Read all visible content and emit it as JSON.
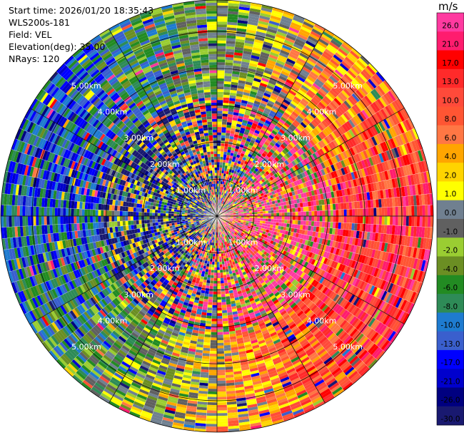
{
  "header": {
    "start_time": "Start time: 2026/01/20 18:35:43",
    "instrument": "WLS200s-181",
    "field": "Field: VEL",
    "elevation": "Elevation(deg): 35.00",
    "nrays": "NRays: 120"
  },
  "chart_data": {
    "type": "heatmap",
    "projection": "polar (PPI)",
    "nrays": 120,
    "range_rings_km": [
      1,
      2,
      3,
      4,
      5
    ],
    "range_labels": [
      "1.00km",
      "2.00km",
      "3.00km",
      "4.00km",
      "5.00km"
    ],
    "max_range_km": 5.85,
    "spokes_deg": [
      0,
      30,
      60,
      90,
      120,
      150,
      180,
      210,
      240,
      270,
      300,
      330
    ],
    "colorbar": {
      "unit": "m/s",
      "ticks": [
        "26.0",
        "21.0",
        "17.0",
        "13.0",
        "10.0",
        "8.0",
        "6.0",
        "4.0",
        "2.0",
        "1.0",
        "0.0",
        "-1.0",
        "-2.0",
        "-4.0",
        "-6.0",
        "-8.0",
        "-10.0",
        "-13.0",
        "-17.0",
        "-21.0",
        "-26.0",
        "-30.0"
      ],
      "bin_colors": [
        "#ff3aa0",
        "#ff1c6e",
        "#ff0000",
        "#ff2a2a",
        "#ff4a3a",
        "#ff5533",
        "#ff7744",
        "#ffa500",
        "#ffd400",
        "#ffff00",
        "#708090",
        "#606060",
        "#9acd32",
        "#6b8e23",
        "#228b22",
        "#2e8b57",
        "#1e7bd0",
        "#3a5fcd",
        "#0000ff",
        "#0000cd",
        "#000080",
        "#191970"
      ]
    }
  }
}
